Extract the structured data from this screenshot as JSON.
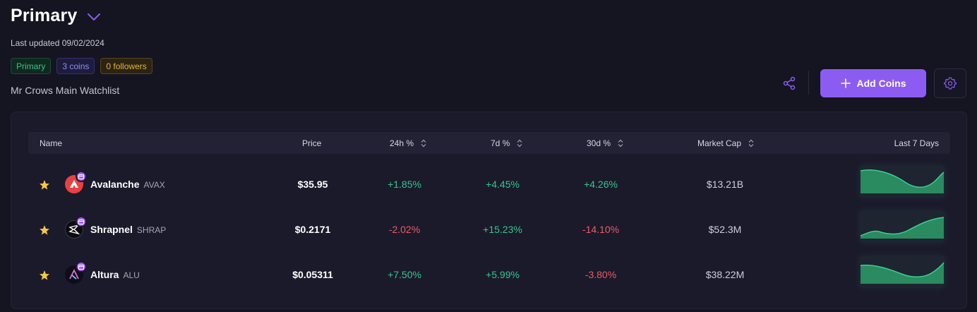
{
  "header": {
    "title": "Primary",
    "last_updated": "Last updated 09/02/2024",
    "badges": {
      "primary": "Primary",
      "coins": "3 coins",
      "followers": "0 followers"
    },
    "subtitle": "Mr Crows Main Watchlist"
  },
  "actions": {
    "add_coins_label": "Add Coins"
  },
  "colors": {
    "accent": "#8c5cf2",
    "positive": "#36c58b",
    "negative": "#e85d64",
    "star": "#f5c742"
  },
  "table": {
    "columns": {
      "name": "Name",
      "price": "Price",
      "change_24h": "24h %",
      "change_7d": "7d %",
      "change_30d": "30d %",
      "market_cap": "Market Cap",
      "last_7_days": "Last 7 Days"
    },
    "rows": [
      {
        "name": "Avalanche",
        "symbol": "AVAX",
        "price": "$35.95",
        "change_24h": "+1.85%",
        "change_7d": "+4.45%",
        "change_30d": "+4.26%",
        "market_cap": "$13.21B",
        "logo_icon": "avalanche-logo-icon"
      },
      {
        "name": "Shrapnel",
        "symbol": "SHRAP",
        "price": "$0.2171",
        "change_24h": "-2.02%",
        "change_7d": "+15.23%",
        "change_30d": "-14.10%",
        "market_cap": "$52.3M",
        "logo_icon": "shrapnel-logo-icon"
      },
      {
        "name": "Altura",
        "symbol": "ALU",
        "price": "$0.05311",
        "change_24h": "+7.50%",
        "change_7d": "+5.99%",
        "change_30d": "-3.80%",
        "market_cap": "$38.22M",
        "logo_icon": "altura-logo-icon"
      }
    ]
  }
}
